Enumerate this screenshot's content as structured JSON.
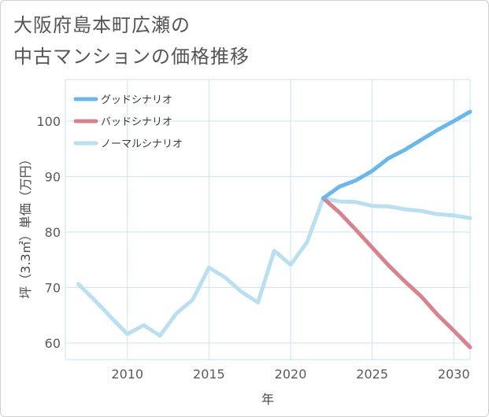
{
  "title": {
    "line1": "大阪府島本町広瀬の",
    "line2": "中古マンションの価格推移"
  },
  "colors": {
    "good": "#6ab7ec",
    "bad": "#d6838e",
    "normal": "#b9dff0",
    "grid": "#cde3ef"
  },
  "chart_data": {
    "type": "line",
    "xlabel": "年",
    "ylabel": "坪（3.3㎡）単価（万円）",
    "xlim": [
      2006.2,
      2031
    ],
    "ylim": [
      57,
      107.5
    ],
    "xticks": [
      2010,
      2015,
      2020,
      2025,
      2030
    ],
    "yticks": [
      60,
      70,
      80,
      90,
      100
    ],
    "tick_labels_x": [
      "2010",
      "2015",
      "2020",
      "2025",
      "2030"
    ],
    "tick_labels_y": [
      "60",
      "70",
      "80",
      "90",
      "100"
    ],
    "legend": [
      "グッドシナリオ",
      "バッドシナリオ",
      "ノーマルシナリオ"
    ],
    "series": [
      {
        "name": "グッドシナリオ",
        "x": [
          2022,
          2023,
          2024,
          2025,
          2026,
          2027,
          2028,
          2029,
          2030,
          2031
        ],
        "y": [
          86.1,
          88.2,
          89.3,
          91.0,
          93.3,
          94.8,
          96.6,
          98.4,
          100.0,
          101.7
        ]
      },
      {
        "name": "バッドシナリオ",
        "x": [
          2022,
          2023,
          2024,
          2025,
          2026,
          2027,
          2028,
          2029,
          2030,
          2031
        ],
        "y": [
          86.1,
          83.5,
          80.4,
          77.2,
          74.0,
          71.1,
          68.4,
          65.1,
          62.2,
          59.2
        ]
      },
      {
        "name": "ノーマルシナリオ",
        "x": [
          2007,
          2008,
          2009,
          2010,
          2011,
          2012,
          2013,
          2014,
          2015,
          2016,
          2017,
          2018,
          2019,
          2020,
          2021,
          2022,
          2023,
          2024,
          2025,
          2026,
          2027,
          2028,
          2029,
          2030,
          2031
        ],
        "y": [
          70.6,
          67.7,
          64.6,
          61.6,
          63.2,
          61.3,
          65.3,
          67.8,
          73.6,
          71.8,
          69.2,
          67.3,
          76.6,
          74.1,
          78.1,
          86.1,
          85.5,
          85.4,
          84.7,
          84.6,
          84.1,
          83.8,
          83.2,
          83.0,
          82.5
        ]
      }
    ]
  }
}
